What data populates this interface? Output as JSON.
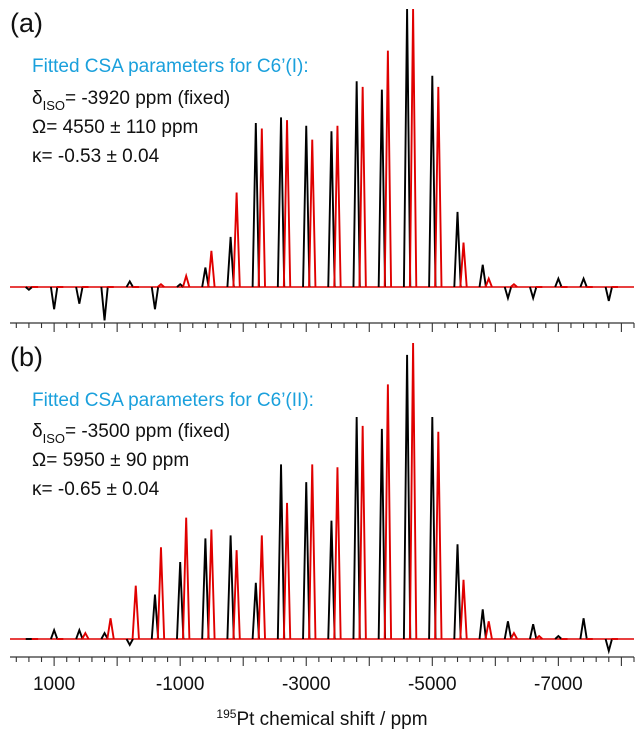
{
  "colors": {
    "experimental": "#000000",
    "fitted": "#e00000",
    "title_blue": "#1aa0dc",
    "axis": "#333333"
  },
  "chart_data": [
    {
      "type": "line",
      "panel_label": "(a)",
      "fit_title": "Fitted CSA parameters for C6’(I):",
      "params": {
        "delta_sym": "δ",
        "delta_sub": "ISO",
        "delta_text": "= -3920 ppm (fixed)",
        "omega_text": "Ω= 4550 ± 110 ppm",
        "kappa_text": "κ= -0.53 ± 0.04"
      },
      "series": [
        {
          "name": "",
          "role": "experimental",
          "x": [
            1400,
            1000,
            600,
            200,
            -200,
            -600,
            -1000,
            -1400,
            -1800,
            -2200,
            -2600,
            -3000,
            -3400,
            -3800,
            -4200,
            -4600,
            -5000,
            -5400,
            -5800,
            -6200,
            -6600,
            -7000,
            -7400,
            -7800
          ],
          "y": [
            -0.01,
            -0.08,
            -0.06,
            -0.12,
            0.02,
            -0.08,
            0.01,
            0.07,
            0.18,
            0.59,
            0.61,
            0.58,
            0.56,
            0.74,
            0.71,
            1.0,
            0.76,
            0.27,
            0.08,
            -0.04,
            -0.04,
            0.03,
            0.03,
            -0.05
          ]
        },
        {
          "name": "",
          "role": "fitted",
          "x": [
            1400,
            1000,
            600,
            200,
            -200,
            -600,
            -1000,
            -1400,
            -1800,
            -2200,
            -2600,
            -3000,
            -3400,
            -3800,
            -4200,
            -4600,
            -5000,
            -5400,
            -5800,
            -6200,
            -6600,
            -7000,
            -7400,
            -7800
          ],
          "y": [
            0,
            0,
            0,
            0,
            0,
            0.01,
            0.04,
            0.13,
            0.34,
            0.57,
            0.6,
            0.53,
            0.58,
            0.72,
            0.85,
            1.0,
            0.72,
            0.16,
            0.03,
            0.01,
            0,
            0,
            0,
            0
          ]
        }
      ]
    },
    {
      "type": "line",
      "panel_label": "(b)",
      "fit_title": "Fitted CSA parameters for C6’(II):",
      "params": {
        "delta_sym": "δ",
        "delta_sub": "ISO",
        "delta_text": "= -3500 ppm (fixed)",
        "omega_text": "Ω= 5950 ± 90 ppm",
        "kappa_text": "κ= -0.65 ± 0.04"
      },
      "series": [
        {
          "name": "",
          "role": "experimental",
          "x": [
            1400,
            1000,
            600,
            200,
            -200,
            -600,
            -1000,
            -1400,
            -1800,
            -2200,
            -2600,
            -3000,
            -3400,
            -3800,
            -4200,
            -4600,
            -5000,
            -5400,
            -5800,
            -6200,
            -6600,
            -7000,
            -7400,
            -7800
          ],
          "y": [
            0,
            0.03,
            0.03,
            0.02,
            -0.02,
            0.15,
            0.26,
            0.34,
            0.35,
            0.19,
            0.59,
            0.53,
            0.4,
            0.75,
            0.71,
            0.96,
            0.75,
            0.32,
            0.1,
            0.06,
            0.05,
            0.01,
            0.07,
            -0.04
          ]
        },
        {
          "name": "",
          "role": "fitted",
          "x": [
            1400,
            1000,
            600,
            200,
            -200,
            -600,
            -1000,
            -1400,
            -1800,
            -2200,
            -2600,
            -3000,
            -3400,
            -3800,
            -4200,
            -4600,
            -5000,
            -5400,
            -5800,
            -6200,
            -6600,
            -7000,
            -7400,
            -7800
          ],
          "y": [
            0,
            0,
            0.02,
            0.07,
            0.18,
            0.31,
            0.41,
            0.37,
            0.3,
            0.35,
            0.46,
            0.59,
            0.58,
            0.72,
            0.86,
            1.0,
            0.7,
            0.2,
            0.06,
            0.02,
            0.01,
            0,
            0,
            0
          ]
        }
      ]
    }
  ],
  "x_axis": {
    "title_sup": "195",
    "title_text": "Pt chemical shift / ppm",
    "tick_labels": [
      "1000",
      "-1000",
      "-3000",
      "-5000",
      "-7000"
    ],
    "tick_values": [
      1000,
      -1000,
      -3000,
      -5000,
      -7000
    ],
    "xlim": [
      1700,
      -8200
    ],
    "minor_step": 200,
    "major_step": 1000
  }
}
